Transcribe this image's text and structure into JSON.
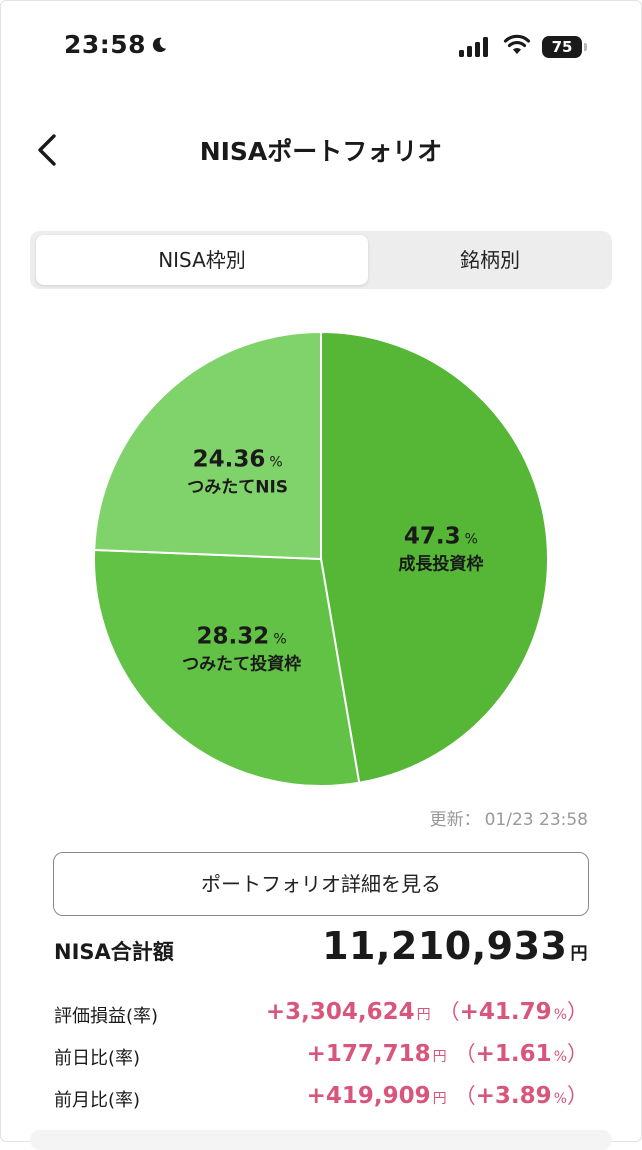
{
  "status": {
    "time": "23:58",
    "battery": "75"
  },
  "header": {
    "title": "NISAポートフォリオ"
  },
  "tabs": [
    {
      "label": "NISA枠別",
      "active": true
    },
    {
      "label": "銘柄別",
      "active": false
    }
  ],
  "chart_data": {
    "type": "pie",
    "slices": [
      {
        "label": "成長投資枠",
        "value": 47.3,
        "color": "#55b735"
      },
      {
        "label": "つみたて投資枠",
        "value": 28.32,
        "color": "#62c245"
      },
      {
        "label": "つみたてNIS",
        "value": 24.36,
        "color": "#80d26a"
      }
    ],
    "unit": "%"
  },
  "updated": {
    "label": "更新：",
    "datetime": "01/23 23:58"
  },
  "detail_button": "ポートフォリオ詳細を見る",
  "summary": {
    "total_label": "NISA合計額",
    "total_value": "11,210,933",
    "total_unit": "円",
    "rows": [
      {
        "label": "評価損益(率)",
        "amount": "+3,304,624",
        "unit": "円",
        "rate": "+41.79",
        "rate_unit": "%"
      },
      {
        "label": "前日比(率)",
        "amount": "+177,718",
        "unit": "円",
        "rate": "+1.61",
        "rate_unit": "%"
      },
      {
        "label": "前月比(率)",
        "amount": "+419,909",
        "unit": "円",
        "rate": "+3.89",
        "rate_unit": "%"
      }
    ]
  }
}
